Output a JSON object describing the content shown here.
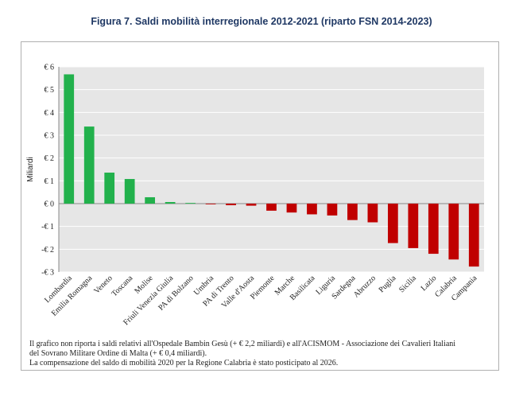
{
  "title": "Figura 7. Saldi mobilità interregionale 2012-2021 (riparto FSN 2014-2023)",
  "notes": [
    "Il grafico non riporta i saldi relativi all'Ospedale Bambin Gesù (+ € 2,2 miliardi) e all'ACISMOM - Associazione dei Cavalieri Italiani",
    "del Sovrano Militare Ordine di Malta (+ € 0,4 miliardi).",
    "La compensazione del saldo di mobilità 2020 per la Regione Calabria è stato posticipato al 2026."
  ],
  "chart_data": {
    "type": "bar",
    "ylabel": "Miliardi",
    "xlabel": "",
    "ylim": [
      -3,
      6
    ],
    "yticks": [
      6,
      5,
      4,
      3,
      2,
      1,
      0,
      -1,
      -2,
      -3
    ],
    "ytick_labels": [
      "€ 6",
      "€ 5",
      "€ 4",
      "€ 3",
      "€ 2",
      "€ 1",
      "€ 0",
      "-€ 1",
      "-€ 2",
      "-€ 3"
    ],
    "grid": true,
    "legend": "none",
    "colors": {
      "positive": "#22b14c",
      "negative": "#c00000",
      "plot_bg": "#e6e6e6",
      "grid": "#ffffff"
    },
    "categories": [
      "Lombardia",
      "Emilia Romagna",
      "Veneto",
      "Toscana",
      "Molise",
      "Friuli Venezia Giulia",
      "PA di Bolzano",
      "Umbria",
      "PA di Trento",
      "Valle d'Aosta",
      "Piemonte",
      "Marche",
      "Basilicata",
      "Liguria",
      "Sardegna",
      "Abruzzo",
      "Puglia",
      "Sicilia",
      "Lazio",
      "Calabria",
      "Campania"
    ],
    "values": [
      5.67,
      3.38,
      1.36,
      1.08,
      0.28,
      0.07,
      0.03,
      -0.03,
      -0.07,
      -0.09,
      -0.31,
      -0.39,
      -0.47,
      -0.52,
      -0.72,
      -0.82,
      -1.73,
      -1.95,
      -2.2,
      -2.45,
      -2.76
    ]
  }
}
